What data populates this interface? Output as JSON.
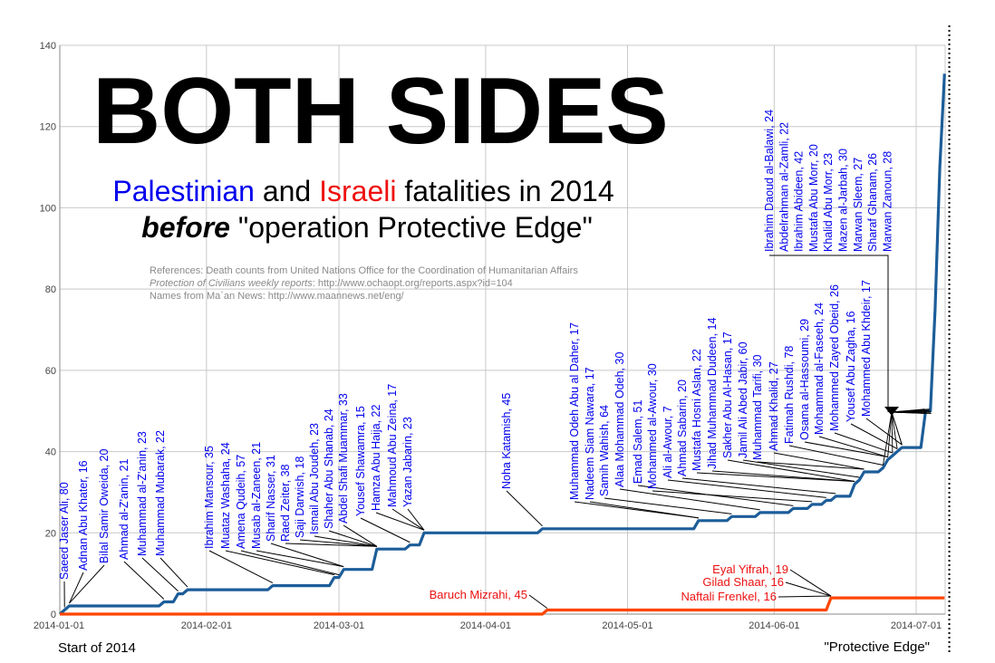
{
  "chart_data": {
    "type": "line",
    "title": "BOTH SIDES",
    "subtitle_parts": [
      {
        "text": "Palestinian",
        "color": "#0000ee"
      },
      {
        "text": " and ",
        "color": "#000000"
      },
      {
        "text": "Israeli",
        "color": "#ee1111"
      },
      {
        "text": " fatalities in 2014",
        "color": "#000000"
      }
    ],
    "subtitle2_bold": "before",
    "subtitle2_rest": " \"operation Protective Edge\"",
    "references": [
      "References: Death counts from United Nations Office for the Coordination of Humanitarian Affairs",
      "Protection of Civilians weekly reports",
      ": http://www.ochaopt.org/reports.aspx?id=104",
      "Names from Ma`an News: http://www.maannews.net/eng/"
    ],
    "ylim": [
      0,
      140
    ],
    "yticks": [
      0,
      20,
      40,
      60,
      80,
      100,
      120,
      140
    ],
    "xticks": [
      "2014-01-01",
      "2014-02-01",
      "2014-03-01",
      "2014-04-01",
      "2014-05-01",
      "2014-06-01",
      "2014-07-01"
    ],
    "start_label": "Start of 2014",
    "end_label": "\"Protective Edge\"",
    "colors": {
      "palestinian": "#1c5d99",
      "israeli": "#ff4500",
      "palestinian_text": "#0000ee",
      "israeli_text": "#ee1111"
    },
    "series": [
      {
        "key": "palestinian",
        "points": [
          [
            "2014-01-01",
            0
          ],
          [
            "2014-01-02",
            1
          ],
          [
            "2014-01-03",
            2
          ],
          [
            "2014-01-22",
            2
          ],
          [
            "2014-01-23",
            3
          ],
          [
            "2014-01-25",
            3
          ],
          [
            "2014-01-26",
            5
          ],
          [
            "2014-01-27",
            5
          ],
          [
            "2014-01-28",
            6
          ],
          [
            "2014-02-14",
            6
          ],
          [
            "2014-02-15",
            7
          ],
          [
            "2014-02-27",
            7
          ],
          [
            "2014-02-28",
            9
          ],
          [
            "2014-03-01",
            9
          ],
          [
            "2014-03-02",
            11
          ],
          [
            "2014-03-08",
            11
          ],
          [
            "2014-03-09",
            16
          ],
          [
            "2014-03-15",
            16
          ],
          [
            "2014-03-16",
            17
          ],
          [
            "2014-03-18",
            17
          ],
          [
            "2014-03-19",
            20
          ],
          [
            "2014-04-12",
            20
          ],
          [
            "2014-04-13",
            21
          ],
          [
            "2014-05-15",
            21
          ],
          [
            "2014-05-16",
            23
          ],
          [
            "2014-05-22",
            23
          ],
          [
            "2014-05-23",
            24
          ],
          [
            "2014-05-28",
            24
          ],
          [
            "2014-05-29",
            25
          ],
          [
            "2014-06-04",
            25
          ],
          [
            "2014-06-05",
            26
          ],
          [
            "2014-06-08",
            26
          ],
          [
            "2014-06-09",
            27
          ],
          [
            "2014-06-11",
            27
          ],
          [
            "2014-06-12",
            28
          ],
          [
            "2014-06-13",
            28
          ],
          [
            "2014-06-14",
            29
          ],
          [
            "2014-06-17",
            29
          ],
          [
            "2014-06-18",
            32
          ],
          [
            "2014-06-19",
            33
          ],
          [
            "2014-06-20",
            35
          ],
          [
            "2014-06-23",
            35
          ],
          [
            "2014-06-24",
            36
          ],
          [
            "2014-06-25",
            38
          ],
          [
            "2014-06-26",
            39
          ],
          [
            "2014-06-27",
            40
          ],
          [
            "2014-06-28",
            41
          ],
          [
            "2014-07-02",
            41
          ],
          [
            "2014-07-03",
            50
          ],
          [
            "2014-07-04",
            50
          ],
          [
            "2014-07-05",
            75
          ],
          [
            "2014-07-06",
            110
          ],
          [
            "2014-07-07",
            133
          ]
        ]
      },
      {
        "key": "israeli",
        "points": [
          [
            "2014-01-01",
            0
          ],
          [
            "2014-04-13",
            0
          ],
          [
            "2014-04-14",
            1
          ],
          [
            "2014-06-12",
            1
          ],
          [
            "2014-06-13",
            4
          ],
          [
            "2014-07-07",
            4
          ]
        ]
      }
    ],
    "pal_names": [
      {
        "label": "Saeed Jaser Ali, 80",
        "target": "2014-01-02"
      },
      {
        "label": "Adnan Abu Khater, 16",
        "target": "2014-01-03"
      },
      {
        "label": "Bilal Samir Oweida, 20",
        "target": "2014-01-03"
      },
      {
        "label": "Ahmad al-Z'anin, 21",
        "target": "2014-01-23"
      },
      {
        "label": "Muhammad al-Z'anin, 23",
        "target": "2014-01-26"
      },
      {
        "label": "Muhammad Mubarak, 22",
        "target": "2014-01-28"
      },
      {
        "label": "Ibrahim Mansour, 35",
        "target": "2014-02-15"
      },
      {
        "label": "Muataz Washaha, 24",
        "target": "2014-02-28"
      },
      {
        "label": "Amena Qudeih, 57",
        "target": "2014-03-01"
      },
      {
        "label": "Musab al-Zaneen, 21",
        "target": "2014-03-02"
      },
      {
        "label": "Sharif Nasser, 31",
        "target": "2014-03-02"
      },
      {
        "label": "Raed Zeiter, 38",
        "target": "2014-03-09"
      },
      {
        "label": "Saji Darwish, 18",
        "target": "2014-03-09"
      },
      {
        "label": "Ismail Abu Joudeh, 23",
        "target": "2014-03-09"
      },
      {
        "label": "Shaher Abu Shanab, 24",
        "target": "2014-03-09"
      },
      {
        "label": "Abdel Shafi Muammar, 33",
        "target": "2014-03-09"
      },
      {
        "label": "Yousef Shawamra, 15",
        "target": "2014-03-16"
      },
      {
        "label": "Hamza Abu Haija, 22",
        "target": "2014-03-19"
      },
      {
        "label": "Mahmoud Abu Zeina, 17",
        "target": "2014-03-19"
      },
      {
        "label": "Yazan Jabarin, 23",
        "target": "2014-03-19"
      },
      {
        "label": "Noha Katamish, 45",
        "target": "2014-04-13"
      },
      {
        "label": "Muhammad Odeh Abu al Daher, 17",
        "target": "2014-05-16"
      },
      {
        "label": "Nadeem Siam Nawara, 17",
        "target": "2014-05-16"
      },
      {
        "label": "Samih Wahish, 64",
        "target": "2014-05-23"
      },
      {
        "label": "Alaa Mohammad Odeh, 30",
        "target": "2014-05-29"
      },
      {
        "label": "Emad Salem, 51",
        "target": "2014-06-05"
      },
      {
        "label": "Mohammed al-Awour, 30",
        "target": "2014-06-09"
      },
      {
        "label": "Ali al-Awour, 7",
        "target": "2014-06-12"
      },
      {
        "label": "Ahmad Sabarin, 20",
        "target": "2014-06-14"
      },
      {
        "label": "Mustafa Hosni Aslan, 22",
        "target": "2014-06-18"
      },
      {
        "label": "Jihad Muhammad Dudeen, 14",
        "target": "2014-06-18"
      },
      {
        "label": "Sakher Abu Al-Hasan, 17",
        "target": "2014-06-18"
      },
      {
        "label": "Jamil Ali Abed Jabir, 60",
        "target": "2014-06-19"
      },
      {
        "label": "Muhammad Tarifi, 30",
        "target": "2014-06-20"
      },
      {
        "label": "Ahmad Khalid, 27",
        "target": "2014-06-20"
      },
      {
        "label": "Fatimah Rushdi, 78",
        "target": "2014-06-24"
      },
      {
        "label": "Osama al-Hassoumi, 29",
        "target": "2014-06-25"
      },
      {
        "label": "Mohammad al-Faseeh, 24",
        "target": "2014-06-25"
      },
      {
        "label": "Mohammed Zayed Obeid, 26",
        "target": "2014-06-26"
      },
      {
        "label": "Yousef Abu Zagha, 16",
        "target": "2014-06-27"
      },
      {
        "label": "Mohammed Abu Khdeir, 17",
        "target": "2014-06-28"
      }
    ],
    "pal_group_names": [
      "Ibrahim Daoud al-Balawi, 24",
      "Abdelrahman al-Zamli, 22",
      "Ibrahim Abideen, 42",
      "Mustafa Abu Morr, 20",
      "Khalid Abu Morr, 23",
      "Mazen al-Jarbah, 30",
      "Marwan Sleem, 27",
      "Sharaf Ghanam, 26",
      "Marwan Zanoun, 28"
    ],
    "pal_group_targets": [
      "2014-07-03",
      "2014-07-04"
    ],
    "isr_names": [
      {
        "label": "Baruch Mizrahi, 45",
        "target": "2014-04-14"
      },
      {
        "label": "Eyal Yifrah, 19",
        "target": "2014-06-13"
      },
      {
        "label": "Gilad Shaar, 16",
        "target": "2014-06-13"
      },
      {
        "label": "Naftali Frenkel, 16",
        "target": "2014-06-13"
      }
    ]
  }
}
